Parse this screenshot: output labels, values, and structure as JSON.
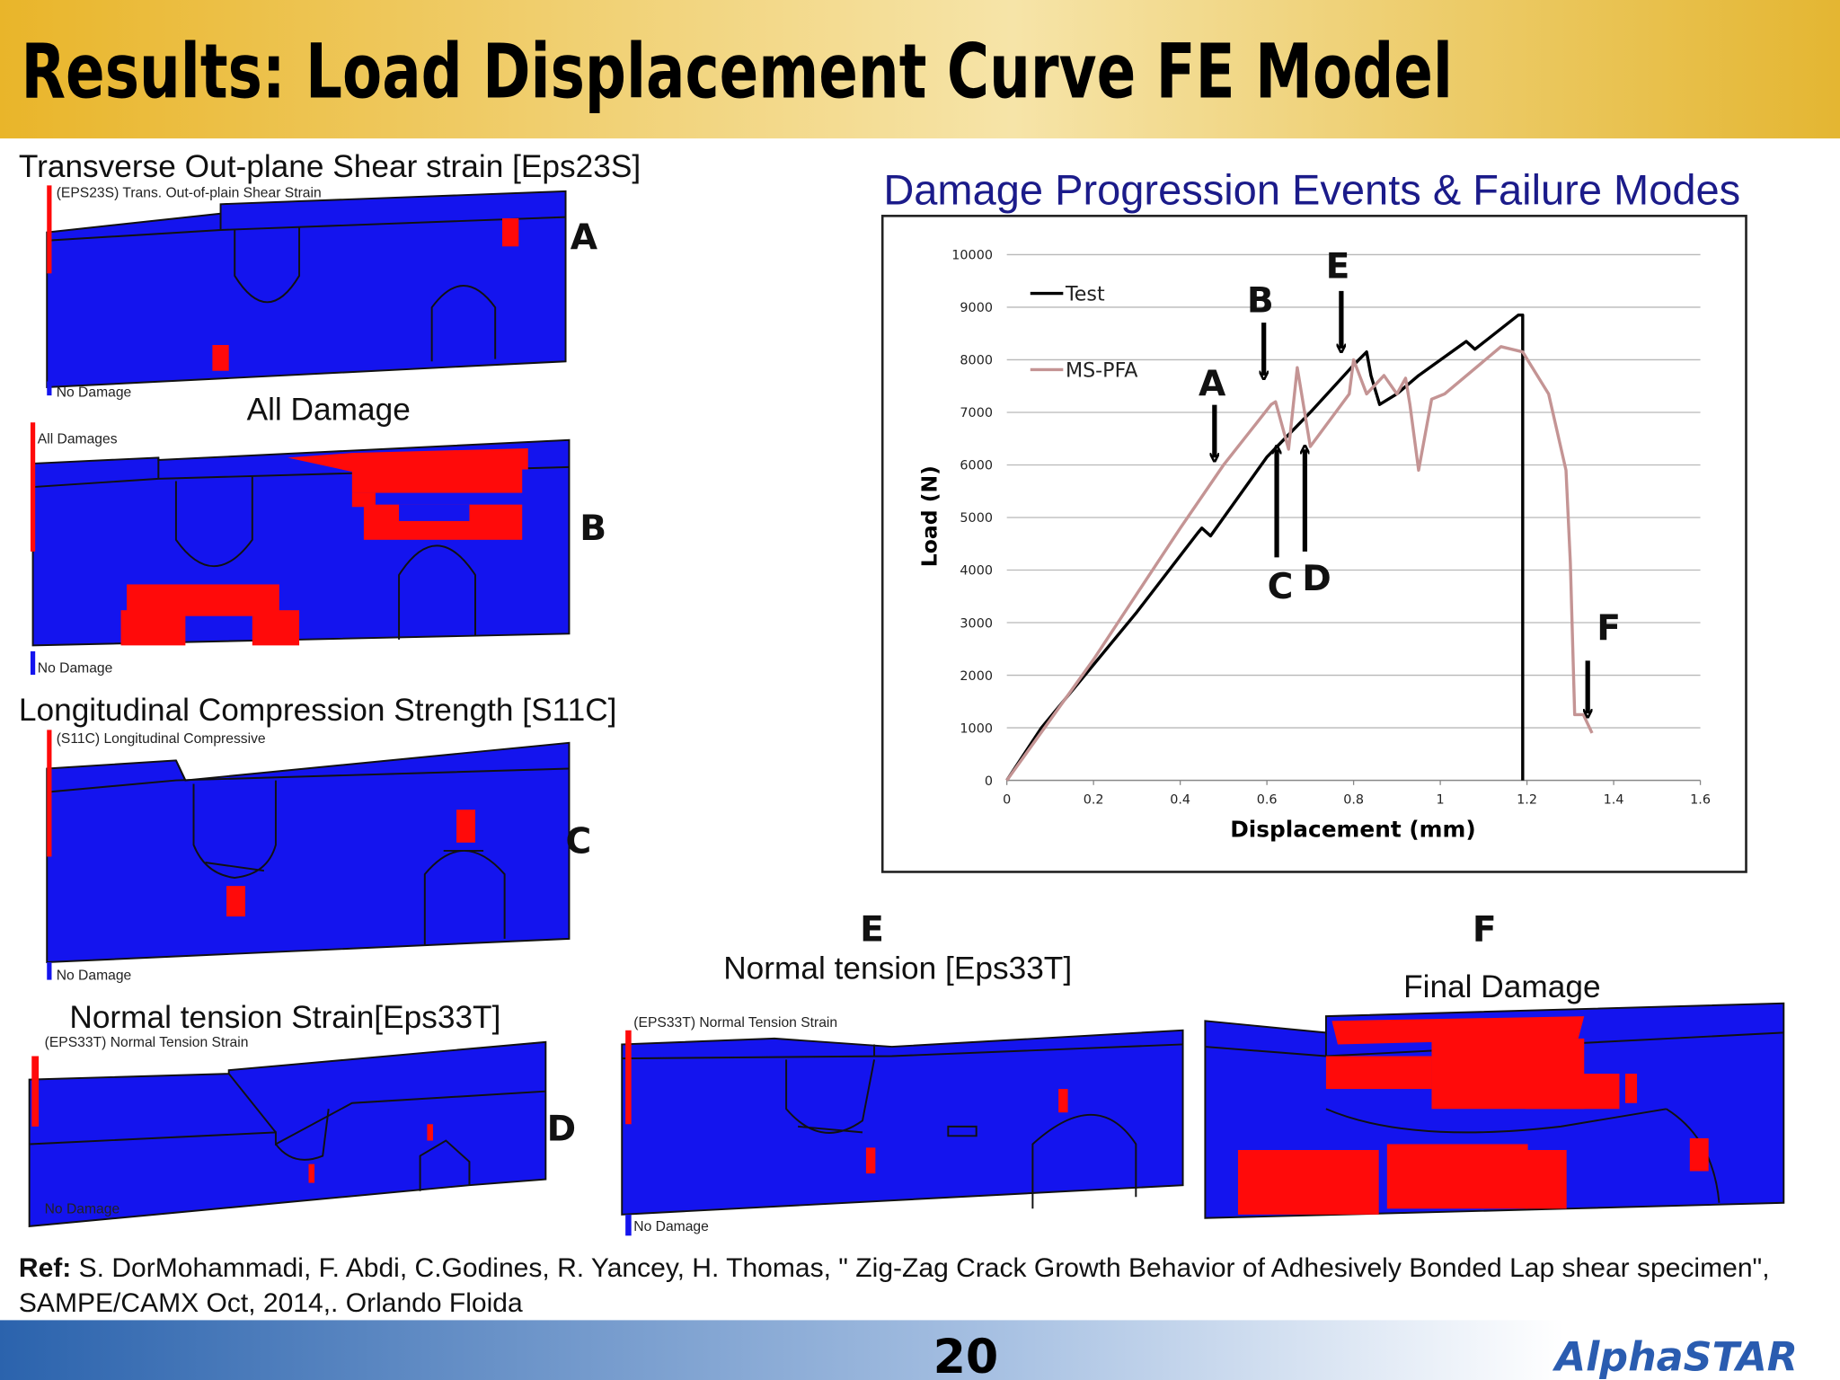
{
  "header": {
    "title": "Results: Load Displacement Curve FE Model"
  },
  "panels": [
    {
      "caption": "Transverse Out-plane Shear strain [Eps23S]",
      "legend_top": "(EPS23S) Trans. Out-of-plain Shear Strain",
      "legend_bottom": "No Damage",
      "letter": "A"
    },
    {
      "caption": "All Damage",
      "legend_top": "All Damages",
      "legend_bottom": "No Damage",
      "letter": "B"
    },
    {
      "caption": "Longitudinal Compression Strength [S11C]",
      "legend_top": "(S11C) Longitudinal Compressive",
      "legend_bottom": "No Damage",
      "letter": "C"
    },
    {
      "caption": "Normal tension  Strain[Eps33T]",
      "legend_top": "(EPS33T) Normal Tension Strain",
      "legend_bottom": "No Damage",
      "letter": "D"
    },
    {
      "caption": "Normal tension [Eps33T]",
      "legend_top": "(EPS33T) Normal Tension Strain",
      "legend_bottom": "No Damage",
      "letter": "E"
    },
    {
      "caption": "Final Damage",
      "letter": "F"
    }
  ],
  "chart_data": {
    "type": "line",
    "title": "Damage Progression Events & Failure Modes",
    "x_label": "Displacement (mm)",
    "y_label": "Load (N)",
    "xlim": [
      0,
      1.6
    ],
    "xticks": [
      0,
      0.2,
      0.4,
      0.6,
      0.8,
      1,
      1.2,
      1.4,
      1.6
    ],
    "ylim": [
      0,
      10000
    ],
    "yticks": [
      0,
      1000,
      2000,
      3000,
      4000,
      5000,
      6000,
      7000,
      8000,
      9000,
      10000
    ],
    "grid": true,
    "legend": "upper left",
    "series": [
      {
        "name": "Test",
        "color": "#000000",
        "x": [
          0,
          0.08,
          0.2,
          0.3,
          0.44,
          0.45,
          0.47,
          0.6,
          0.7,
          0.8,
          0.83,
          0.84,
          0.86,
          0.9,
          0.95,
          1.06,
          1.08,
          1.18,
          1.19,
          1.19
        ],
        "values": [
          0,
          1000,
          2200,
          3200,
          4700,
          4800,
          4650,
          6150,
          7000,
          7900,
          8150,
          7700,
          7150,
          7350,
          7700,
          8350,
          8200,
          8850,
          8850,
          0
        ]
      },
      {
        "name": "MS-PFA",
        "color": "#c49494",
        "x": [
          0,
          0.2,
          0.4,
          0.5,
          0.61,
          0.62,
          0.65,
          0.67,
          0.7,
          0.79,
          0.8,
          0.83,
          0.87,
          0.9,
          0.92,
          0.93,
          0.95,
          0.98,
          1.01,
          1.14,
          1.19,
          1.25,
          1.29,
          1.3,
          1.31,
          1.33,
          1.35
        ],
        "values": [
          0,
          2300,
          4800,
          6000,
          7150,
          7200,
          6300,
          7850,
          6350,
          7350,
          8000,
          7350,
          7700,
          7350,
          7650,
          7150,
          5900,
          7250,
          7350,
          8250,
          8150,
          7350,
          5900,
          4150,
          1250,
          1250,
          900
        ]
      }
    ],
    "annotations": [
      "A",
      "B",
      "C",
      "D",
      "E",
      "F"
    ]
  },
  "reference": {
    "label": "Ref:",
    "line1": " S. DorMohammadi, F. Abdi, C.Godines, R. Yancey, H. Thomas, \" Zig-Zag Crack Growth Behavior of Adhesively Bonded Lap shear specimen\",",
    "line2": "SAMPE/CAMX Oct, 2014,. Orlando Floida"
  },
  "footer": {
    "page": "20",
    "logo": "AlphaSTAR"
  }
}
